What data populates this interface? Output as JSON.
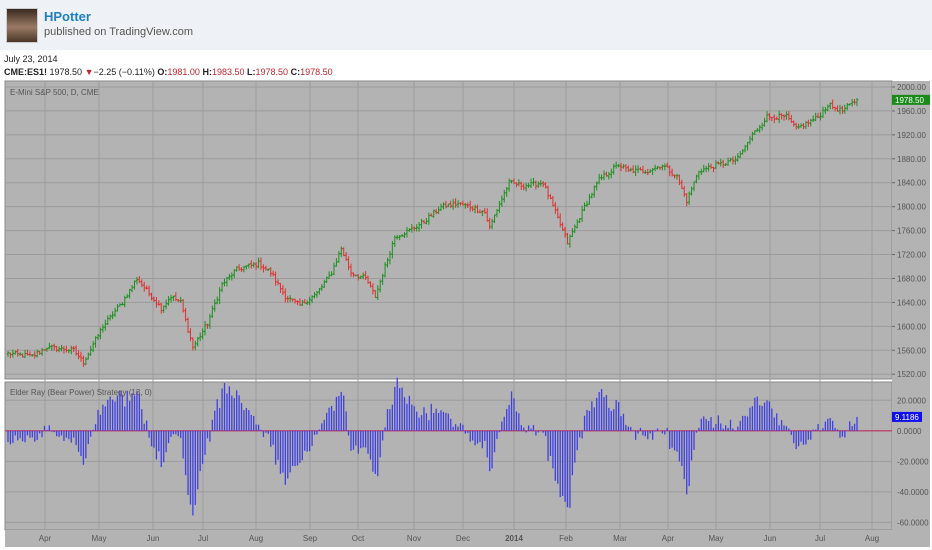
{
  "header": {
    "author": "HPotter",
    "published": "published on TradingView.com"
  },
  "date": "July 23, 2014",
  "quote": {
    "symbol": "CME:ES1!",
    "last": "1978.50",
    "change": "−2.25 (−0.11%)",
    "o_label": "O:",
    "o": "1981.00",
    "h_label": "H:",
    "h": "1983.50",
    "l_label": "L:",
    "l": "1978.50",
    "c_label": "C:",
    "c": "1978.50",
    "down_color": "#c0262d"
  },
  "chart_data": {
    "type": "bar",
    "title": "E-Mini S&P 500, D, CME",
    "price_axis": {
      "ticks": [
        "2000.00",
        "1960.00",
        "1920.00",
        "1880.00",
        "1840.00",
        "1800.00",
        "1760.00",
        "1720.00",
        "1680.00",
        "1640.00",
        "1600.00",
        "1560.00",
        "1520.00"
      ],
      "range": [
        1512,
        2010
      ]
    },
    "last_price_label": "1978.50",
    "x_labels": [
      "Apr",
      "May",
      "Jun",
      "Jul",
      "Aug",
      "Sep",
      "Oct",
      "Nov",
      "Dec",
      "2014",
      "Feb",
      "Mar",
      "Apr",
      "May",
      "Jun",
      "Jul",
      "Aug"
    ],
    "bars_total": 350,
    "close_anchors": [
      [
        0,
        1555
      ],
      [
        10,
        1550
      ],
      [
        16,
        1565
      ],
      [
        27,
        1560
      ],
      [
        31,
        1540
      ],
      [
        39,
        1600
      ],
      [
        47,
        1640
      ],
      [
        53,
        1680
      ],
      [
        57,
        1660
      ],
      [
        63,
        1630
      ],
      [
        67,
        1650
      ],
      [
        71,
        1640
      ],
      [
        76,
        1565
      ],
      [
        82,
        1605
      ],
      [
        88,
        1670
      ],
      [
        94,
        1695
      ],
      [
        103,
        1705
      ],
      [
        108,
        1690
      ],
      [
        114,
        1650
      ],
      [
        120,
        1635
      ],
      [
        127,
        1655
      ],
      [
        133,
        1690
      ],
      [
        137,
        1730
      ],
      [
        141,
        1690
      ],
      [
        147,
        1680
      ],
      [
        151,
        1650
      ],
      [
        155,
        1700
      ],
      [
        159,
        1750
      ],
      [
        165,
        1760
      ],
      [
        171,
        1775
      ],
      [
        178,
        1800
      ],
      [
        185,
        1805
      ],
      [
        190,
        1800
      ],
      [
        196,
        1790
      ],
      [
        198,
        1765
      ],
      [
        202,
        1805
      ],
      [
        206,
        1840
      ],
      [
        212,
        1835
      ],
      [
        220,
        1840
      ],
      [
        224,
        1800
      ],
      [
        230,
        1740
      ],
      [
        237,
        1800
      ],
      [
        243,
        1845
      ],
      [
        251,
        1870
      ],
      [
        255,
        1860
      ],
      [
        263,
        1860
      ],
      [
        269,
        1870
      ],
      [
        275,
        1850
      ],
      [
        279,
        1810
      ],
      [
        284,
        1860
      ],
      [
        292,
        1870
      ],
      [
        300,
        1880
      ],
      [
        306,
        1920
      ],
      [
        312,
        1950
      ],
      [
        320,
        1950
      ],
      [
        324,
        1930
      ],
      [
        333,
        1950
      ],
      [
        337,
        1970
      ],
      [
        343,
        1960
      ],
      [
        349,
        1978.5
      ]
    ],
    "colors": {
      "up": "#1f8f1f",
      "down": "#e03030",
      "bear_power": "#4040e0",
      "zero_line": "#c03060"
    },
    "indicator": {
      "title": "Elder Ray (Bear Power) Strategy (13, 0)",
      "length": 13,
      "ticks": [
        "20.0000",
        "0.0000",
        "-20.0000",
        "-40.0000",
        "-60.0000"
      ],
      "tick_values": [
        20,
        0,
        -20,
        -40,
        -60
      ],
      "range": [
        -65,
        32
      ],
      "last_value_label": "9.1186"
    }
  }
}
